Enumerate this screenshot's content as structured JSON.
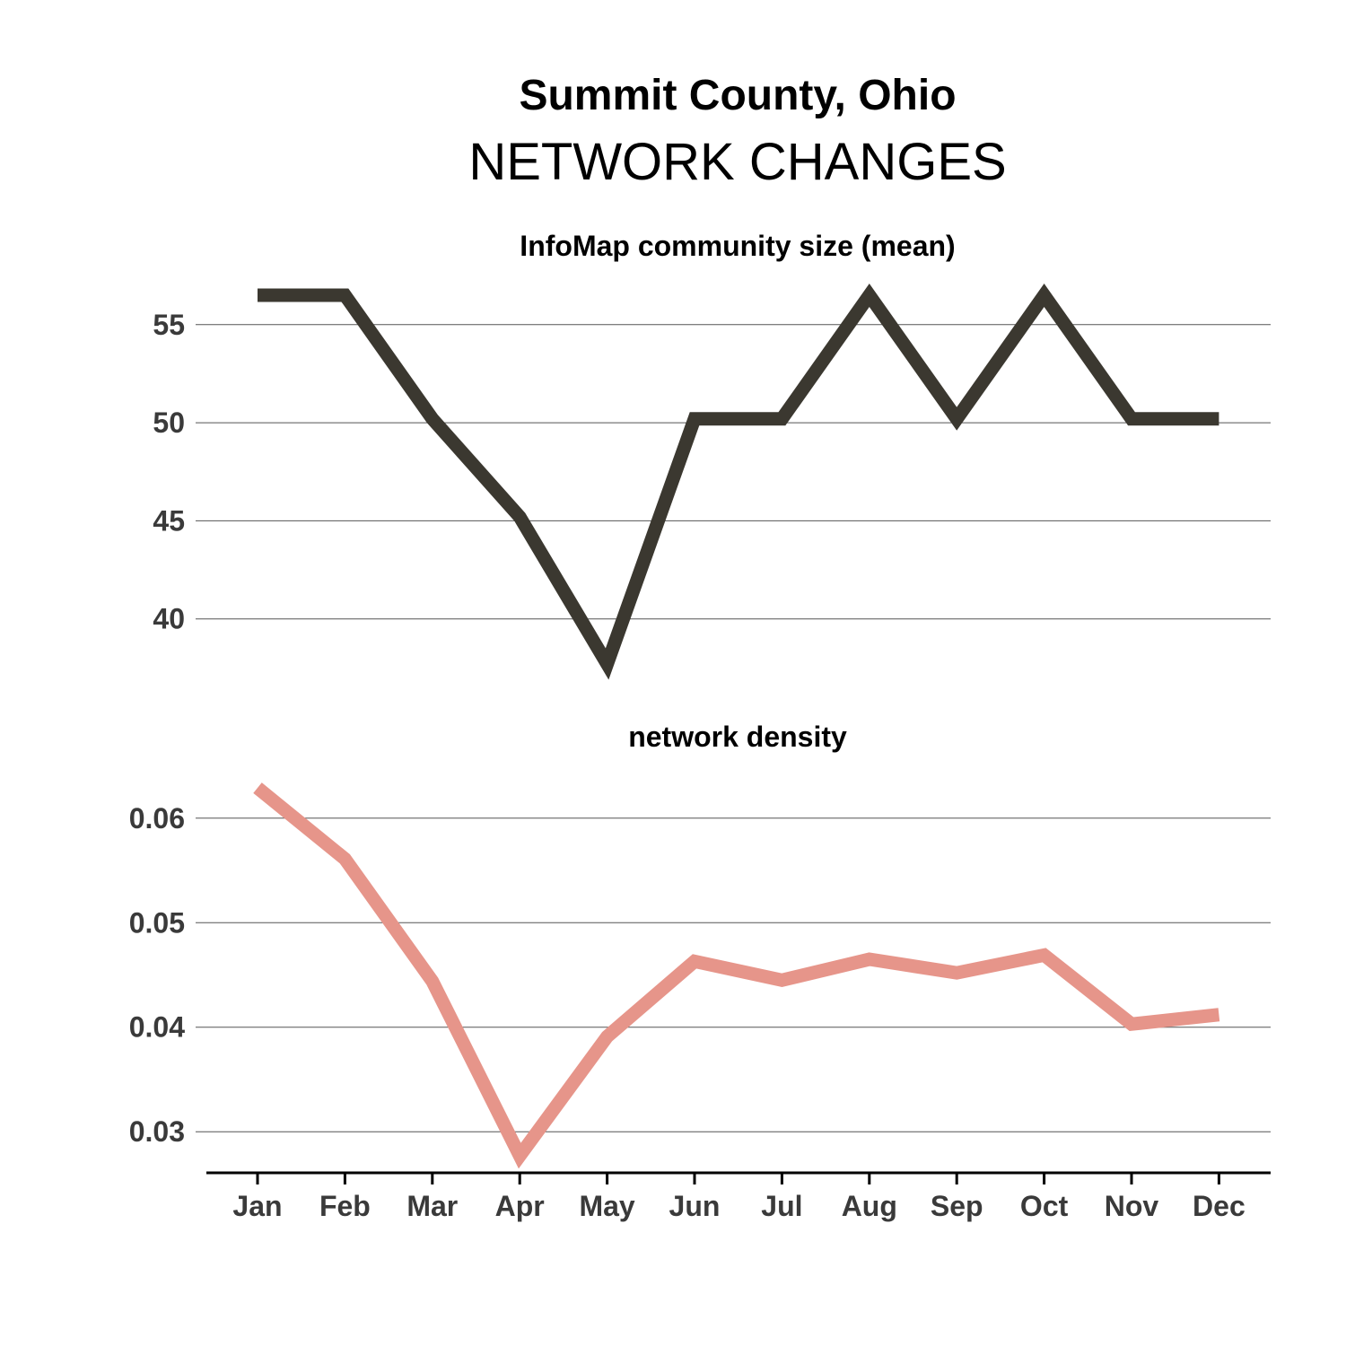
{
  "title": "Summit County, Ohio",
  "subtitle": "NETWORK CHANGES",
  "chart_data": [
    {
      "type": "line",
      "title": "InfoMap community size (mean)",
      "x": [
        "Jan",
        "Feb",
        "Mar",
        "Apr",
        "May",
        "Jun",
        "Jul",
        "Aug",
        "Sep",
        "Oct",
        "Nov",
        "Dec"
      ],
      "series": [
        {
          "values": [
            56.5,
            56.5,
            50.2,
            45.2,
            37.7,
            50.2,
            50.2,
            56.5,
            50.2,
            56.5,
            50.2,
            50.2
          ],
          "color": "#3b3830"
        }
      ],
      "yticks": [
        40,
        45,
        50,
        55
      ],
      "ytick_labels": [
        "40",
        "45",
        "50",
        "55"
      ],
      "ylim": [
        37.7,
        56.5
      ],
      "grid": "horizontal"
    },
    {
      "type": "line",
      "title": "network density",
      "x": [
        "Jan",
        "Feb",
        "Mar",
        "Apr",
        "May",
        "Jun",
        "Jul",
        "Aug",
        "Sep",
        "Oct",
        "Nov",
        "Dec"
      ],
      "series": [
        {
          "values": [
            0.0629,
            0.0561,
            0.0444,
            0.0277,
            0.0391,
            0.0463,
            0.0445,
            0.0465,
            0.0452,
            0.0469,
            0.0403,
            0.0412
          ],
          "color": "#e6958a"
        }
      ],
      "yticks": [
        0.03,
        0.04,
        0.05,
        0.06
      ],
      "ytick_labels": [
        "0.03",
        "0.04",
        "0.05",
        "0.06"
      ],
      "ylim": [
        0.0277,
        0.0629
      ],
      "grid": "horizontal"
    }
  ]
}
